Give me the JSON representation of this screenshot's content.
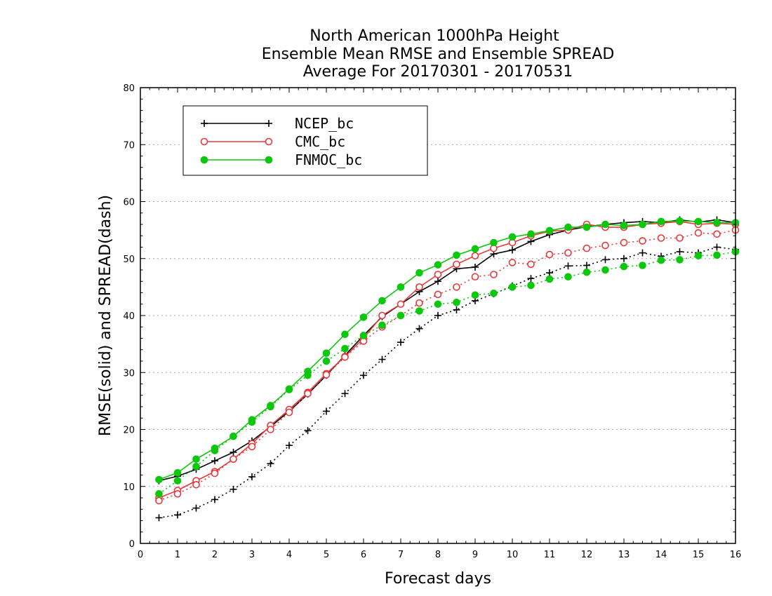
{
  "chart_data": {
    "type": "line",
    "title": [
      "North American 1000hPa Height",
      "Ensemble Mean RMSE and Ensemble SPREAD",
      "Average For 20170301 - 20170531"
    ],
    "xlabel": "Forecast days",
    "ylabel": "RMSE(solid) and SPREAD(dash)",
    "xlim": [
      0,
      16
    ],
    "ylim": [
      0,
      80
    ],
    "x_ticks": [
      "0",
      "1",
      "2",
      "3",
      "4",
      "5",
      "6",
      "7",
      "8",
      "9",
      "10",
      "11",
      "12",
      "13",
      "14",
      "15",
      "16"
    ],
    "y_ticks": [
      "0",
      "10",
      "20",
      "30",
      "40",
      "50",
      "60",
      "70",
      "80"
    ],
    "grid": "horizontal dotted",
    "legend_position": "top-left",
    "x": [
      0.5,
      1,
      1.5,
      2,
      2.5,
      3,
      3.5,
      4,
      4.5,
      5,
      5.5,
      6,
      6.5,
      7,
      7.5,
      8,
      8.5,
      9,
      9.5,
      10,
      10.5,
      11,
      11.5,
      12,
      12.5,
      13,
      13.5,
      14,
      14.5,
      15,
      15.5,
      16
    ],
    "series": [
      {
        "name": "NCEP_bc",
        "metric": "RMSE",
        "color": "#000000",
        "marker": "plus",
        "style": "solid",
        "values": [
          11.0,
          11.8,
          13.0,
          14.5,
          16.0,
          18.0,
          20.5,
          23.2,
          26.2,
          29.5,
          33.0,
          36.5,
          39.8,
          42.0,
          44.2,
          46.0,
          48.2,
          48.5,
          50.8,
          51.5,
          53.0,
          54.2,
          55.0,
          55.6,
          56.0,
          56.3,
          56.5,
          56.3,
          56.8,
          56.4,
          56.8,
          56.3
        ]
      },
      {
        "name": "NCEP_bc",
        "metric": "SPREAD",
        "color": "#000000",
        "marker": "plus",
        "style": "dash",
        "values": [
          4.5,
          5.0,
          6.2,
          7.7,
          9.5,
          11.7,
          14.0,
          17.2,
          19.8,
          23.2,
          26.3,
          29.5,
          32.3,
          35.3,
          37.7,
          40.0,
          41.0,
          42.6,
          43.8,
          45.2,
          46.5,
          47.5,
          48.7,
          48.8,
          49.8,
          50.0,
          51.0,
          50.4,
          51.2,
          51.0,
          52.0,
          51.6
        ]
      },
      {
        "name": "CMC_bc",
        "metric": "RMSE",
        "color": "#e8383a",
        "marker": "open-circle",
        "style": "solid",
        "values": [
          8.0,
          9.3,
          11.0,
          12.6,
          14.8,
          17.5,
          20.7,
          23.5,
          26.5,
          29.8,
          32.8,
          36.0,
          40.0,
          42.0,
          45.0,
          47.2,
          49.0,
          50.5,
          51.8,
          52.8,
          54.0,
          54.8,
          55.0,
          56.0,
          55.5,
          55.5,
          56.0,
          56.2,
          56.5,
          56.0,
          56.2,
          56.0
        ]
      },
      {
        "name": "CMC_bc",
        "metric": "SPREAD",
        "color": "#e8383a",
        "marker": "open-circle",
        "style": "dash",
        "values": [
          7.5,
          8.7,
          10.3,
          12.3,
          14.8,
          17.0,
          20.0,
          23.0,
          26.3,
          29.6,
          32.7,
          35.5,
          38.0,
          40.0,
          42.2,
          43.7,
          45.0,
          46.8,
          47.2,
          49.3,
          49.0,
          50.7,
          51.0,
          51.8,
          52.3,
          52.8,
          53.1,
          53.6,
          53.6,
          54.5,
          54.3,
          55.0
        ]
      },
      {
        "name": "FNMOC_bc",
        "metric": "RMSE",
        "color": "#0cc80c",
        "marker": "filled-circle",
        "style": "solid",
        "values": [
          11.2,
          12.4,
          14.8,
          16.7,
          18.8,
          21.7,
          24.2,
          27.1,
          30.2,
          33.4,
          36.7,
          39.7,
          42.6,
          45.0,
          47.5,
          48.9,
          50.6,
          51.7,
          52.8,
          53.8,
          54.3,
          54.9,
          55.5,
          55.5,
          56.0,
          55.8,
          56.0,
          56.5,
          56.6,
          56.5,
          56.3,
          56.3
        ]
      },
      {
        "name": "FNMOC_bc",
        "metric": "SPREAD",
        "color": "#0cc80c",
        "marker": "filled-circle",
        "style": "dash",
        "values": [
          8.7,
          11.0,
          13.5,
          16.3,
          18.8,
          21.3,
          24.0,
          27.0,
          29.5,
          32.0,
          34.2,
          36.5,
          38.3,
          40.0,
          40.8,
          42.0,
          42.3,
          43.6,
          43.9,
          45.0,
          45.3,
          46.4,
          46.8,
          47.6,
          48.0,
          48.6,
          48.8,
          49.7,
          49.8,
          50.5,
          50.6,
          51.2
        ]
      }
    ]
  }
}
